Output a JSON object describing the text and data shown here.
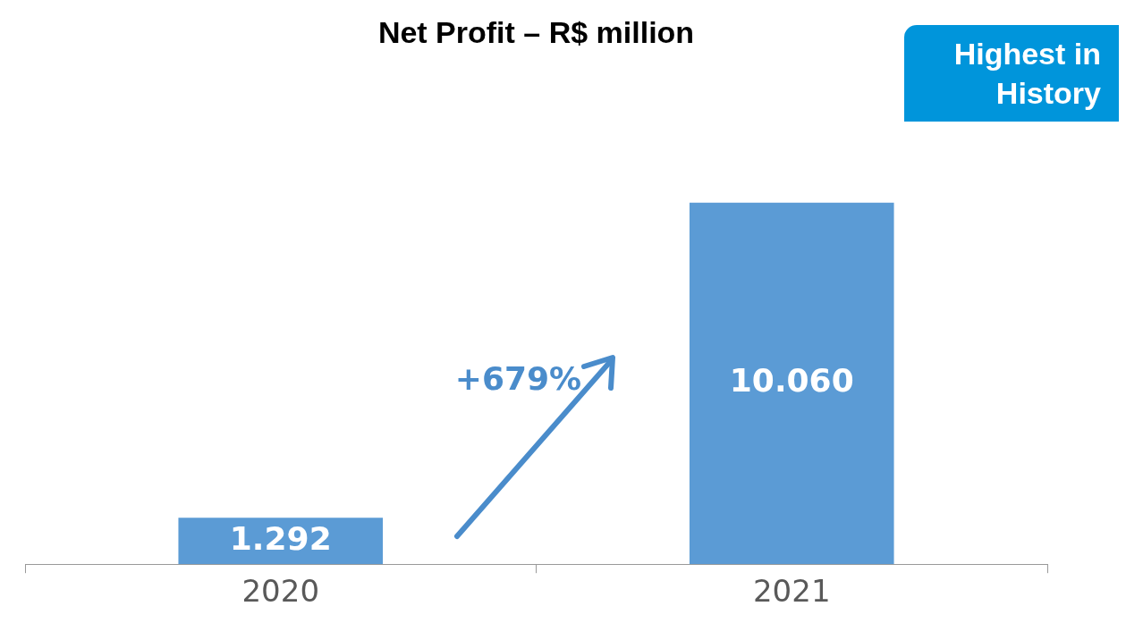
{
  "chart_data": {
    "type": "bar",
    "title": "Net Profit – R$ million",
    "categories": [
      "2020",
      "2021"
    ],
    "values": [
      1292,
      10060
    ],
    "value_labels": [
      "1.292",
      "10.060"
    ],
    "color": "#5b9bd5",
    "legend": false,
    "annotations": [
      "+679%",
      "Highest in History"
    ]
  }
}
